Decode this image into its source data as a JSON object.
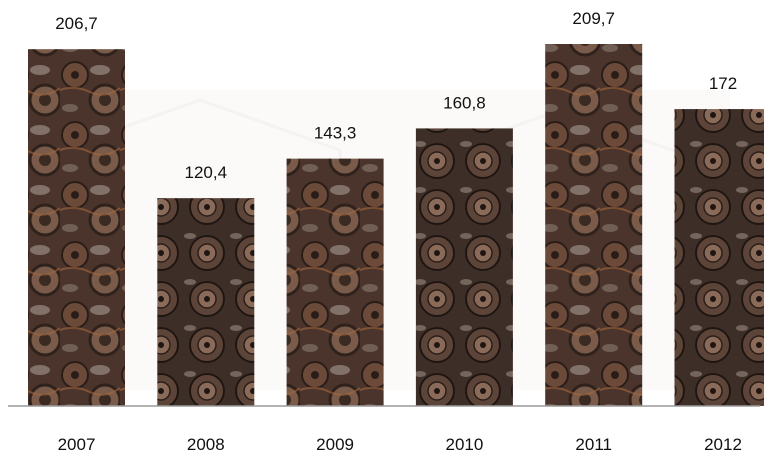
{
  "chart_data": {
    "type": "bar",
    "title": "",
    "xlabel": "",
    "ylabel": "",
    "categories": [
      "2007",
      "2008",
      "2009",
      "2010",
      "2011",
      "2012"
    ],
    "values": [
      206.7,
      120.4,
      143.3,
      160.8,
      209.7,
      172
    ],
    "value_labels": [
      "206,7",
      "120,4",
      "143,3",
      "160,8",
      "209,7",
      "172"
    ],
    "ylim": [
      0,
      209.7
    ],
    "grid": false,
    "legend": "none",
    "bar_fill": "photographic texture of scrap brake discs and drums",
    "colors": {
      "rust": "#6b3f28",
      "dark_metal": "#3a2c26",
      "light_metal": "#9a8c82",
      "background_watermark": "#f0eeec",
      "axis_line": "#9a9a9a"
    }
  }
}
